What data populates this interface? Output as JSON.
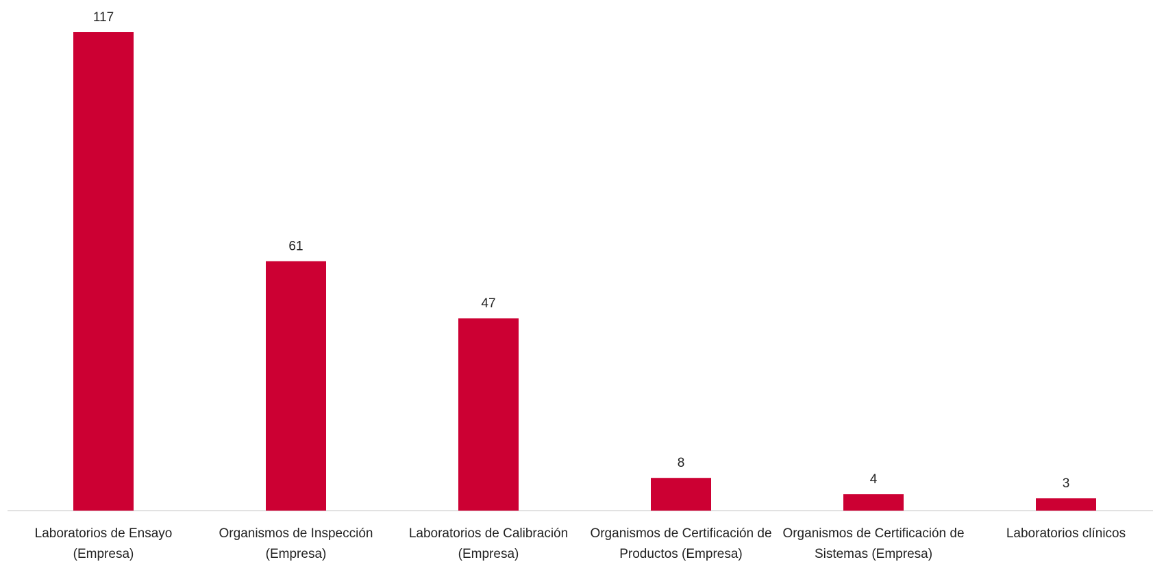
{
  "chart_data": {
    "type": "bar",
    "categories": [
      "Laboratorios de Ensayo (Empresa)",
      "Organismos de Inspección (Empresa)",
      "Laboratorios de Calibración (Empresa)",
      "Organismos de Certificación de Productos (Empresa)",
      "Organismos de Certificación de Sistemas (Empresa)",
      "Laboratorios clínicos"
    ],
    "values": [
      117,
      61,
      47,
      8,
      4,
      3
    ],
    "color": "#cc0033"
  }
}
